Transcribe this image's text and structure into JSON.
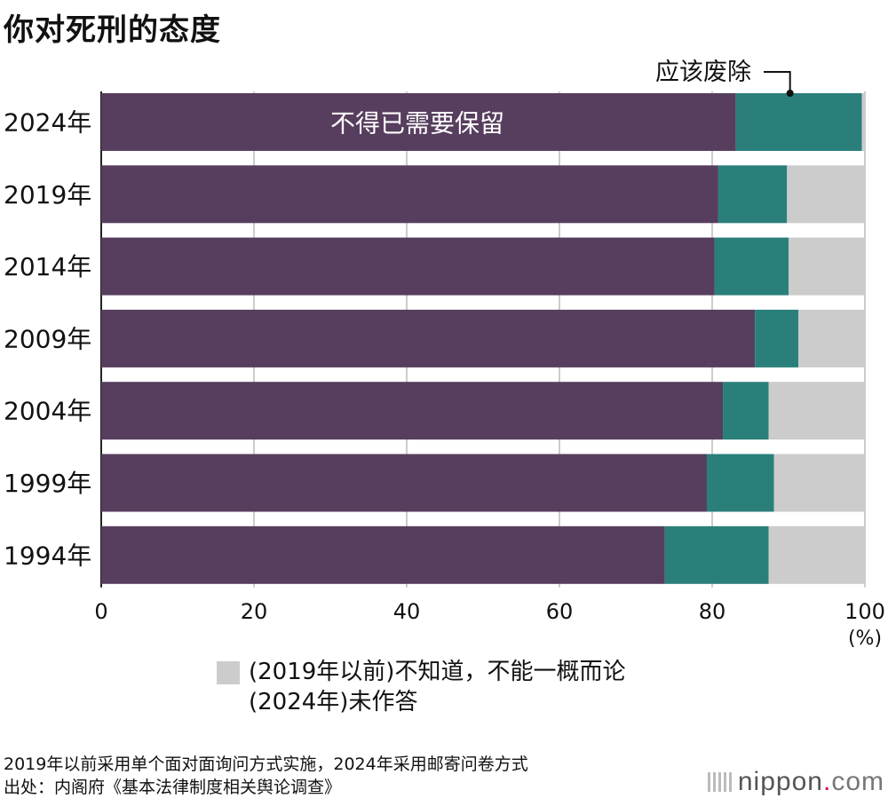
{
  "title": "你对死刑的态度",
  "chart_data": {
    "type": "bar",
    "orientation": "horizontal",
    "stacked": true,
    "categories": [
      "2024年",
      "2019年",
      "2014年",
      "2009年",
      "2004年",
      "1999年",
      "1994年"
    ],
    "series": [
      {
        "name": "不得已需要保留",
        "color": "#573e5e",
        "values": [
          83.1,
          80.8,
          80.3,
          85.6,
          81.4,
          79.3,
          73.8
        ]
      },
      {
        "name": "应该废除",
        "color": "#2a7f7b",
        "values": [
          16.5,
          9.0,
          9.7,
          5.7,
          6.0,
          8.8,
          13.6
        ]
      },
      {
        "name": "(2019年以前)不知道，不能一概而论 (2024年)未作答",
        "color": "#cccccc",
        "values": [
          0.4,
          10.2,
          10.0,
          8.7,
          12.6,
          11.9,
          12.6
        ]
      }
    ],
    "xlim": [
      0,
      100
    ],
    "xticks": [
      0,
      20,
      40,
      60,
      80,
      100
    ],
    "xunit": "(%)",
    "grid": true
  },
  "annotations": {
    "inside_label": "不得已需要保留",
    "callout_label": "应该废除"
  },
  "legend": {
    "line1": "(2019年以前)不知道，不能一概而论",
    "line2": "(2024年)未作答"
  },
  "notes": {
    "line1": "2019年以前采用单个面对面询问方式实施，2024年采用邮寄问卷方式",
    "line2": "出处：内阁府《基本法律制度相关舆论调查》"
  },
  "logo": {
    "name": "nippon",
    "dot": ".",
    "tld": "com"
  }
}
